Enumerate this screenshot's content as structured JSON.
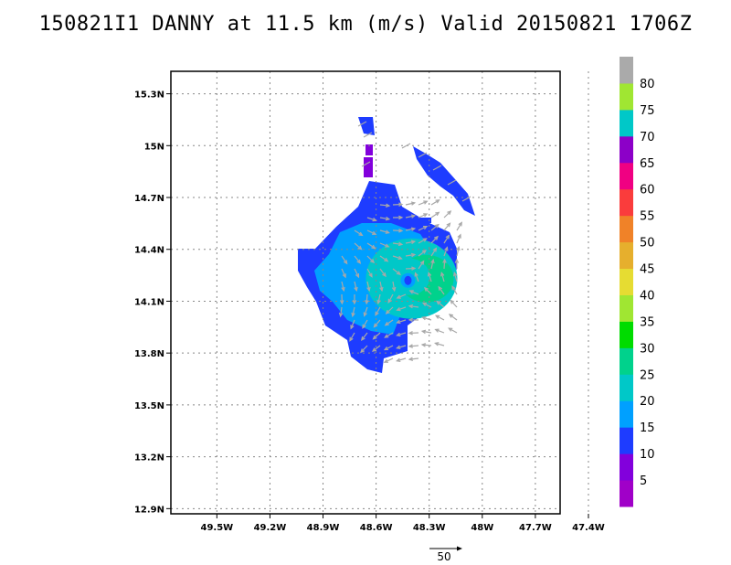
{
  "title": "150821I1 DANNY at 11.5 km (m/s) Valid 20150821 1706Z",
  "map": {
    "lon_ticks": [
      {
        "value": -49.5,
        "label": "49.5W"
      },
      {
        "value": -49.2,
        "label": "49.2W"
      },
      {
        "value": -48.9,
        "label": "48.9W"
      },
      {
        "value": -48.6,
        "label": "48.6W"
      },
      {
        "value": -48.3,
        "label": "48.3W"
      },
      {
        "value": -48.0,
        "label": "48W"
      },
      {
        "value": -47.7,
        "label": "47.7W"
      },
      {
        "value": -47.4,
        "label": "47.4W"
      }
    ],
    "lat_ticks": [
      {
        "value": 12.9,
        "label": "12.9N"
      },
      {
        "value": 13.2,
        "label": "13.2N"
      },
      {
        "value": 13.5,
        "label": "13.5N"
      },
      {
        "value": 13.8,
        "label": "13.8N"
      },
      {
        "value": 14.1,
        "label": "14.1N"
      },
      {
        "value": 14.4,
        "label": "14.4N"
      },
      {
        "value": 14.7,
        "label": "14.7N"
      },
      {
        "value": 15.0,
        "label": "15N"
      },
      {
        "value": 15.3,
        "label": "15.3N"
      }
    ],
    "lon_range": [
      -49.76,
      -47.56
    ],
    "lat_range": [
      12.87,
      15.43
    ],
    "gridlines": true,
    "storm_center": {
      "lon": -48.42,
      "lat": 14.22
    }
  },
  "colorbar": {
    "colors": [
      "#a000c8",
      "#8200dc",
      "#1e3cff",
      "#00a0ff",
      "#00c8c8",
      "#00d28c",
      "#00dc00",
      "#a0e632",
      "#e6dc32",
      "#e6af2d",
      "#f08228",
      "#fa3c3c",
      "#f00082",
      "#8c00c8",
      "#00c8c8",
      "#a0e632",
      "#aaaaaa"
    ],
    "labels": [
      "5",
      "10",
      "15",
      "20",
      "25",
      "30",
      "35",
      "40",
      "45",
      "50",
      "55",
      "60",
      "65",
      "70",
      "75",
      "80"
    ]
  },
  "reference_vector": {
    "label": "50",
    "speed": 50
  }
}
